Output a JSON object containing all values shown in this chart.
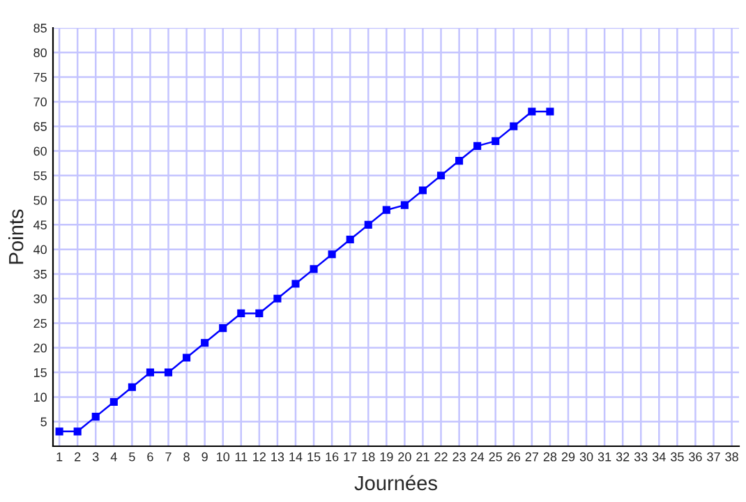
{
  "chart_data": {
    "type": "line",
    "xlabel": "Journées",
    "ylabel": "Points",
    "categories": [
      "1",
      "2",
      "3",
      "4",
      "5",
      "6",
      "7",
      "8",
      "9",
      "10",
      "11",
      "12",
      "13",
      "14",
      "15",
      "16",
      "17",
      "18",
      "19",
      "20",
      "21",
      "22",
      "23",
      "24",
      "25",
      "26",
      "27",
      "28",
      "29",
      "30",
      "31",
      "32",
      "33",
      "34",
      "35",
      "36",
      "37",
      "38"
    ],
    "series": [
      {
        "color": "#0000ff",
        "values": [
          3,
          3,
          6,
          9,
          12,
          15,
          15,
          18,
          21,
          24,
          27,
          27,
          30,
          33,
          36,
          39,
          42,
          45,
          48,
          49,
          52,
          55,
          58,
          61,
          62,
          65,
          68,
          68,
          null,
          null,
          null,
          null,
          null,
          null,
          null,
          null,
          null,
          null
        ]
      }
    ],
    "ylim": [
      0,
      85
    ],
    "yticks": [
      5,
      10,
      15,
      20,
      25,
      30,
      35,
      40,
      45,
      50,
      55,
      60,
      65,
      70,
      75,
      80,
      85
    ],
    "grid": true,
    "marker": "square",
    "line_style": "solid"
  }
}
